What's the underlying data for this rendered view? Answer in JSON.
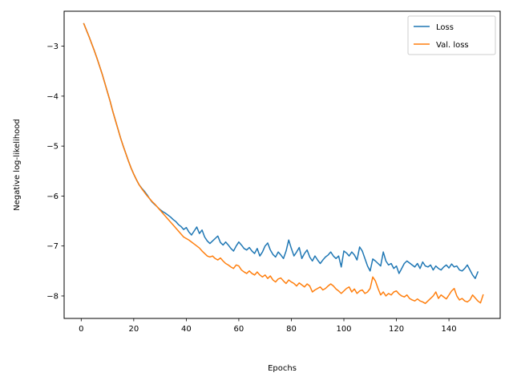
{
  "chart_data": {
    "type": "line",
    "xlabel": "Epochs",
    "ylabel": "Negative log-likelihood",
    "xlim": [
      -6.5,
      159.5
    ],
    "ylim": [
      -8.45,
      -2.3
    ],
    "xticks": [
      0,
      20,
      40,
      60,
      80,
      100,
      120,
      140
    ],
    "yticks": [
      -3,
      -4,
      -5,
      -6,
      -7,
      -8
    ],
    "ytick_labels": [
      "−3",
      "−4",
      "−5",
      "−6",
      "−7",
      "−8"
    ],
    "grid": false,
    "legend_position": "top-right",
    "x_start": 1,
    "series": [
      {
        "name": "Loss",
        "color": "#1f77b4",
        "values": [
          -2.55,
          -2.68,
          -2.81,
          -2.95,
          -3.09,
          -3.24,
          -3.4,
          -3.56,
          -3.74,
          -3.92,
          -4.1,
          -4.3,
          -4.48,
          -4.66,
          -4.84,
          -5.0,
          -5.15,
          -5.3,
          -5.44,
          -5.56,
          -5.67,
          -5.77,
          -5.84,
          -5.9,
          -5.97,
          -6.05,
          -6.12,
          -6.17,
          -6.22,
          -6.27,
          -6.31,
          -6.34,
          -6.38,
          -6.42,
          -6.47,
          -6.51,
          -6.57,
          -6.61,
          -6.67,
          -6.63,
          -6.72,
          -6.78,
          -6.7,
          -6.62,
          -6.75,
          -6.68,
          -6.82,
          -6.9,
          -6.95,
          -6.9,
          -6.85,
          -6.8,
          -6.93,
          -6.98,
          -6.92,
          -6.98,
          -7.05,
          -7.1,
          -7.0,
          -6.92,
          -6.98,
          -7.05,
          -7.08,
          -7.03,
          -7.1,
          -7.15,
          -7.05,
          -7.2,
          -7.12,
          -7.0,
          -6.94,
          -7.08,
          -7.17,
          -7.22,
          -7.12,
          -7.18,
          -7.25,
          -7.1,
          -6.88,
          -7.05,
          -7.2,
          -7.12,
          -7.03,
          -7.25,
          -7.15,
          -7.08,
          -7.22,
          -7.3,
          -7.2,
          -7.28,
          -7.35,
          -7.28,
          -7.22,
          -7.18,
          -7.12,
          -7.2,
          -7.25,
          -7.2,
          -7.42,
          -7.1,
          -7.14,
          -7.2,
          -7.12,
          -7.18,
          -7.28,
          -7.02,
          -7.1,
          -7.25,
          -7.4,
          -7.5,
          -7.26,
          -7.3,
          -7.35,
          -7.4,
          -7.12,
          -7.3,
          -7.38,
          -7.35,
          -7.45,
          -7.4,
          -7.55,
          -7.45,
          -7.35,
          -7.3,
          -7.34,
          -7.38,
          -7.42,
          -7.35,
          -7.45,
          -7.32,
          -7.4,
          -7.42,
          -7.38,
          -7.48,
          -7.4,
          -7.45,
          -7.48,
          -7.42,
          -7.38,
          -7.44,
          -7.36,
          -7.42,
          -7.4,
          -7.48,
          -7.5,
          -7.45,
          -7.38,
          -7.48,
          -7.58,
          -7.65,
          -7.52
        ]
      },
      {
        "name": "Val. loss",
        "color": "#ff7f0e",
        "values": [
          -2.55,
          -2.68,
          -2.81,
          -2.95,
          -3.09,
          -3.24,
          -3.4,
          -3.56,
          -3.74,
          -3.92,
          -4.1,
          -4.3,
          -4.48,
          -4.66,
          -4.84,
          -5.0,
          -5.15,
          -5.3,
          -5.44,
          -5.56,
          -5.67,
          -5.77,
          -5.85,
          -5.92,
          -5.99,
          -6.05,
          -6.11,
          -6.16,
          -6.22,
          -6.28,
          -6.34,
          -6.4,
          -6.46,
          -6.52,
          -6.58,
          -6.64,
          -6.7,
          -6.76,
          -6.82,
          -6.85,
          -6.88,
          -6.92,
          -6.96,
          -7.0,
          -7.04,
          -7.1,
          -7.15,
          -7.2,
          -7.22,
          -7.2,
          -7.25,
          -7.28,
          -7.24,
          -7.3,
          -7.35,
          -7.38,
          -7.42,
          -7.45,
          -7.38,
          -7.4,
          -7.48,
          -7.52,
          -7.55,
          -7.5,
          -7.55,
          -7.58,
          -7.52,
          -7.58,
          -7.62,
          -7.58,
          -7.65,
          -7.6,
          -7.68,
          -7.72,
          -7.66,
          -7.64,
          -7.7,
          -7.75,
          -7.68,
          -7.72,
          -7.75,
          -7.8,
          -7.74,
          -7.78,
          -7.82,
          -7.76,
          -7.8,
          -7.92,
          -7.88,
          -7.85,
          -7.82,
          -7.88,
          -7.85,
          -7.8,
          -7.76,
          -7.8,
          -7.86,
          -7.9,
          -7.95,
          -7.9,
          -7.85,
          -7.82,
          -7.92,
          -7.86,
          -7.95,
          -7.9,
          -7.88,
          -7.95,
          -7.92,
          -7.85,
          -7.62,
          -7.7,
          -7.85,
          -7.98,
          -7.92,
          -8.0,
          -7.95,
          -7.98,
          -7.92,
          -7.9,
          -7.96,
          -8.0,
          -8.02,
          -7.98,
          -8.05,
          -8.08,
          -8.1,
          -8.06,
          -8.1,
          -8.12,
          -8.15,
          -8.1,
          -8.05,
          -8.0,
          -7.92,
          -8.05,
          -7.98,
          -8.02,
          -8.06,
          -7.98,
          -7.9,
          -7.85,
          -8.0,
          -8.08,
          -8.05,
          -8.1,
          -8.12,
          -8.08,
          -7.98,
          -8.04,
          -8.1,
          -8.14,
          -7.98
        ]
      }
    ]
  }
}
